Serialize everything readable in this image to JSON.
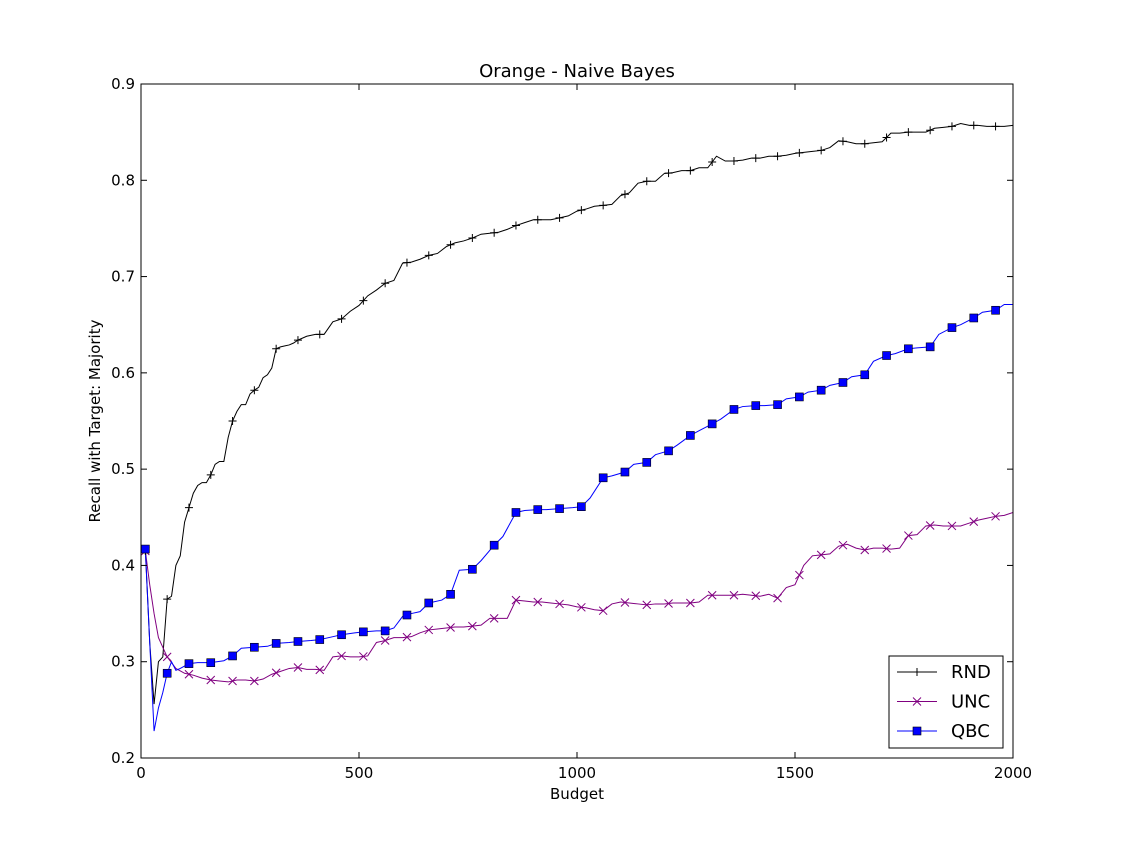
{
  "chart_data": {
    "type": "line",
    "title": "Orange - Naive Bayes",
    "xlabel": "Budget",
    "ylabel": "Recall with Target: Majority",
    "xlim": [
      0,
      2000
    ],
    "ylim": [
      0.2,
      0.9
    ],
    "xticks": [
      0,
      500,
      1000,
      1500,
      2000
    ],
    "yticks": [
      0.2,
      0.3,
      0.4,
      0.5,
      0.6,
      0.7,
      0.8,
      0.9
    ],
    "grid": false,
    "legend_position": "lower-right",
    "series": [
      {
        "name": "RND",
        "color": "#000000",
        "marker": "plus",
        "x": [
          10,
          20,
          30,
          40,
          50,
          60,
          70,
          80,
          90,
          100,
          110,
          120,
          130,
          140,
          150,
          160,
          170,
          180,
          190,
          200,
          210,
          220,
          230,
          240,
          250,
          260,
          270,
          280,
          290,
          300,
          310,
          320,
          330,
          340,
          350,
          360,
          380,
          400,
          420,
          440,
          460,
          480,
          500,
          520,
          540,
          560,
          580,
          600,
          620,
          640,
          660,
          680,
          700,
          720,
          740,
          760,
          780,
          800,
          820,
          840,
          860,
          880,
          900,
          920,
          940,
          960,
          980,
          1000,
          1020,
          1040,
          1060,
          1080,
          1100,
          1120,
          1140,
          1160,
          1180,
          1200,
          1220,
          1240,
          1260,
          1280,
          1300,
          1320,
          1340,
          1360,
          1380,
          1400,
          1420,
          1440,
          1460,
          1480,
          1500,
          1520,
          1540,
          1560,
          1580,
          1600,
          1620,
          1640,
          1660,
          1680,
          1700,
          1720,
          1740,
          1760,
          1780,
          1800,
          1820,
          1840,
          1860,
          1880,
          1900,
          1920,
          1940,
          1960,
          1980,
          2000
        ],
        "y": [
          0.415,
          0.32,
          0.256,
          0.3,
          0.305,
          0.365,
          0.368,
          0.4,
          0.41,
          0.445,
          0.46,
          0.475,
          0.483,
          0.486,
          0.486,
          0.494,
          0.505,
          0.508,
          0.508,
          0.533,
          0.55,
          0.56,
          0.567,
          0.567,
          0.578,
          0.582,
          0.585,
          0.595,
          0.598,
          0.605,
          0.625,
          0.627,
          0.628,
          0.629,
          0.631,
          0.634,
          0.638,
          0.64,
          0.64,
          0.653,
          0.656,
          0.664,
          0.67,
          0.68,
          0.686,
          0.693,
          0.696,
          0.714,
          0.715,
          0.718,
          0.722,
          0.724,
          0.731,
          0.735,
          0.737,
          0.74,
          0.744,
          0.745,
          0.746,
          0.749,
          0.753,
          0.756,
          0.759,
          0.759,
          0.759,
          0.761,
          0.763,
          0.768,
          0.77,
          0.773,
          0.774,
          0.775,
          0.784,
          0.787,
          0.797,
          0.799,
          0.799,
          0.807,
          0.808,
          0.81,
          0.81,
          0.813,
          0.813,
          0.825,
          0.82,
          0.82,
          0.821,
          0.823,
          0.823,
          0.825,
          0.825,
          0.826,
          0.828,
          0.829,
          0.83,
          0.831,
          0.834,
          0.841,
          0.84,
          0.838,
          0.838,
          0.839,
          0.84,
          0.849,
          0.849,
          0.85,
          0.85,
          0.85,
          0.854,
          0.855,
          0.856,
          0.859,
          0.857,
          0.857,
          0.856,
          0.856,
          0.856,
          0.857
        ]
      },
      {
        "name": "UNC",
        "color": "#800080",
        "marker": "x",
        "x": [
          10,
          20,
          30,
          40,
          50,
          60,
          80,
          100,
          120,
          140,
          160,
          180,
          200,
          220,
          240,
          260,
          280,
          300,
          320,
          340,
          360,
          380,
          400,
          420,
          440,
          460,
          480,
          500,
          520,
          540,
          560,
          580,
          600,
          620,
          640,
          660,
          680,
          700,
          720,
          740,
          760,
          780,
          800,
          820,
          840,
          860,
          880,
          900,
          920,
          940,
          960,
          980,
          1000,
          1020,
          1040,
          1060,
          1080,
          1100,
          1120,
          1140,
          1160,
          1180,
          1200,
          1220,
          1240,
          1260,
          1280,
          1300,
          1320,
          1340,
          1360,
          1380,
          1400,
          1420,
          1440,
          1460,
          1480,
          1500,
          1520,
          1540,
          1560,
          1580,
          1600,
          1620,
          1640,
          1660,
          1680,
          1700,
          1720,
          1740,
          1760,
          1780,
          1800,
          1820,
          1840,
          1860,
          1880,
          1900,
          1920,
          1940,
          1960,
          1980,
          2000
        ],
        "y": [
          0.415,
          0.38,
          0.35,
          0.325,
          0.315,
          0.305,
          0.293,
          0.288,
          0.286,
          0.283,
          0.281,
          0.28,
          0.279,
          0.281,
          0.281,
          0.28,
          0.282,
          0.287,
          0.29,
          0.293,
          0.294,
          0.292,
          0.292,
          0.291,
          0.305,
          0.306,
          0.305,
          0.305,
          0.306,
          0.32,
          0.322,
          0.325,
          0.325,
          0.326,
          0.33,
          0.333,
          0.334,
          0.335,
          0.336,
          0.336,
          0.337,
          0.338,
          0.345,
          0.345,
          0.345,
          0.364,
          0.363,
          0.362,
          0.362,
          0.361,
          0.36,
          0.359,
          0.357,
          0.356,
          0.354,
          0.353,
          0.36,
          0.362,
          0.361,
          0.36,
          0.359,
          0.36,
          0.36,
          0.361,
          0.361,
          0.361,
          0.362,
          0.369,
          0.369,
          0.369,
          0.369,
          0.37,
          0.369,
          0.368,
          0.37,
          0.366,
          0.377,
          0.38,
          0.4,
          0.41,
          0.411,
          0.412,
          0.42,
          0.422,
          0.418,
          0.416,
          0.418,
          0.418,
          0.417,
          0.418,
          0.431,
          0.432,
          0.441,
          0.442,
          0.441,
          0.441,
          0.441,
          0.444,
          0.447,
          0.449,
          0.451,
          0.452,
          0.455
        ]
      },
      {
        "name": "QBC",
        "color": "#0000ff",
        "marker": "square",
        "x": [
          10,
          20,
          30,
          40,
          50,
          60,
          70,
          80,
          90,
          110,
          130,
          160,
          190,
          210,
          230,
          260,
          290,
          310,
          340,
          360,
          390,
          410,
          440,
          460,
          490,
          510,
          540,
          560,
          580,
          600,
          620,
          640,
          660,
          690,
          710,
          730,
          760,
          780,
          810,
          830,
          860,
          880,
          910,
          930,
          960,
          990,
          1010,
          1030,
          1060,
          1080,
          1110,
          1130,
          1160,
          1180,
          1210,
          1230,
          1260,
          1280,
          1310,
          1330,
          1360,
          1380,
          1410,
          1430,
          1460,
          1480,
          1510,
          1530,
          1560,
          1580,
          1610,
          1630,
          1660,
          1680,
          1710,
          1730,
          1760,
          1780,
          1810,
          1830,
          1860,
          1880,
          1910,
          1930,
          1960,
          1980,
          2000
        ],
        "y": [
          0.417,
          0.32,
          0.228,
          0.252,
          0.268,
          0.288,
          0.3,
          0.291,
          0.293,
          0.298,
          0.299,
          0.299,
          0.301,
          0.306,
          0.314,
          0.315,
          0.316,
          0.319,
          0.32,
          0.321,
          0.322,
          0.323,
          0.326,
          0.328,
          0.33,
          0.331,
          0.332,
          0.332,
          0.335,
          0.347,
          0.35,
          0.352,
          0.361,
          0.364,
          0.37,
          0.395,
          0.396,
          0.405,
          0.421,
          0.43,
          0.455,
          0.457,
          0.458,
          0.458,
          0.459,
          0.46,
          0.461,
          0.47,
          0.491,
          0.493,
          0.497,
          0.505,
          0.507,
          0.515,
          0.519,
          0.525,
          0.535,
          0.54,
          0.547,
          0.552,
          0.562,
          0.565,
          0.566,
          0.566,
          0.567,
          0.573,
          0.575,
          0.58,
          0.582,
          0.587,
          0.59,
          0.596,
          0.598,
          0.612,
          0.618,
          0.62,
          0.625,
          0.626,
          0.627,
          0.64,
          0.647,
          0.65,
          0.657,
          0.663,
          0.665,
          0.671,
          0.671
        ]
      }
    ]
  }
}
